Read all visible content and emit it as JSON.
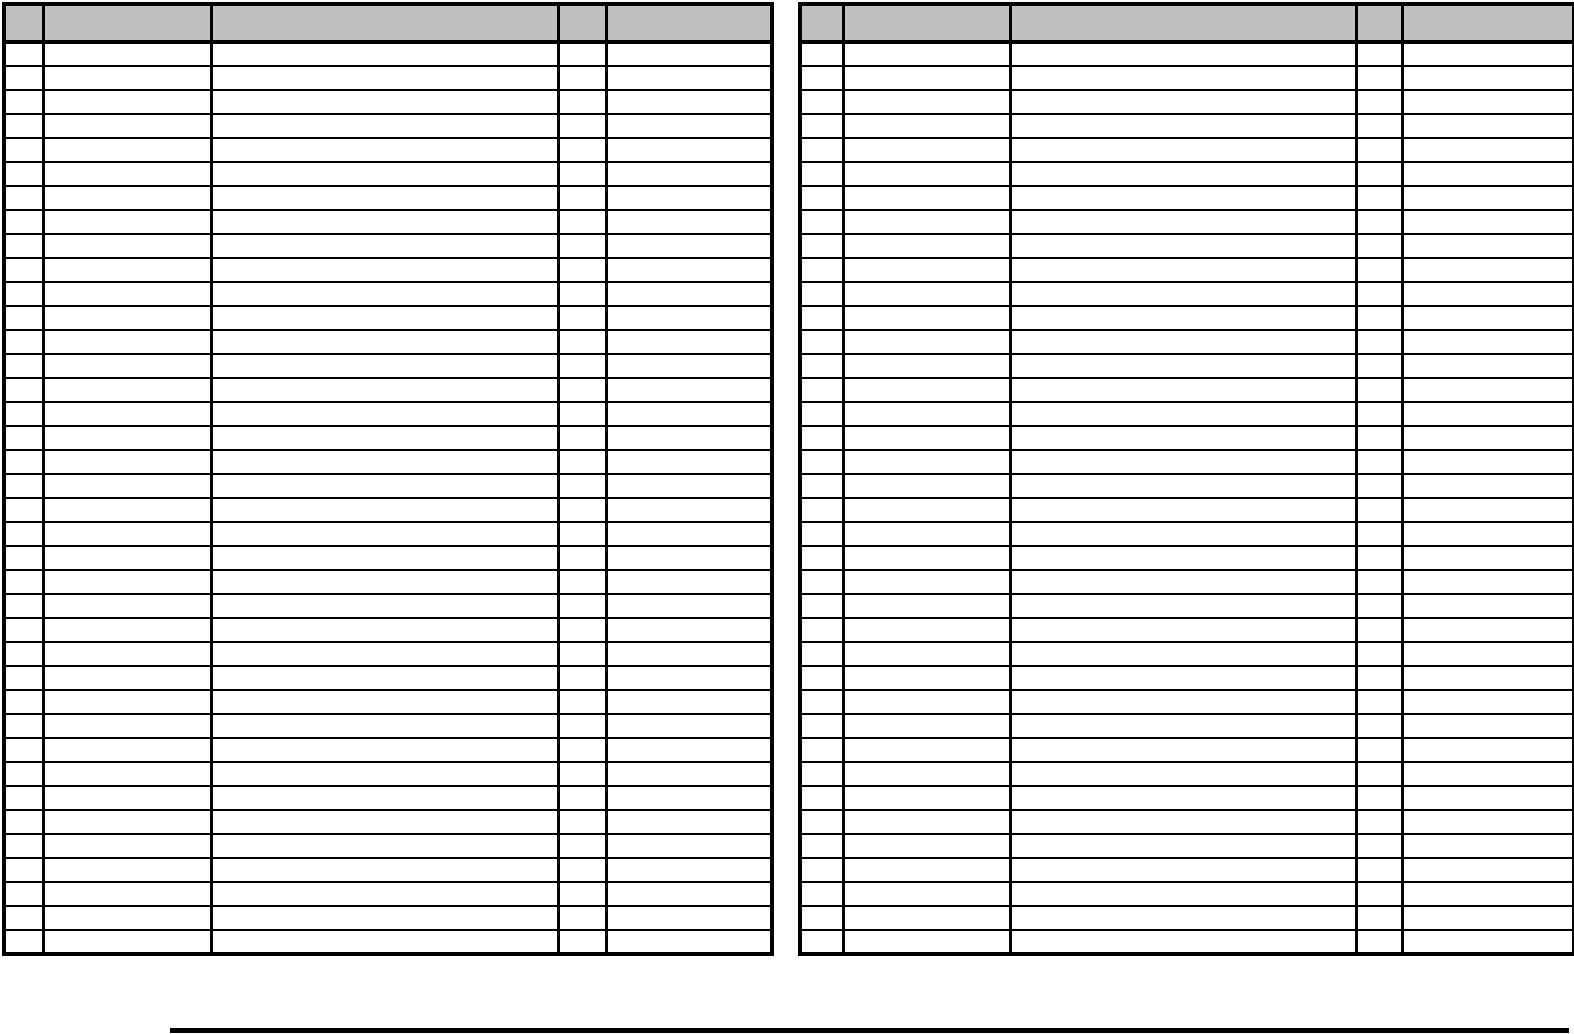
{
  "document": {
    "kind": "blank-form-page",
    "background": "#ffffff"
  },
  "theme": {
    "header_fill": "#c0c0c0",
    "border_color": "#000000",
    "footer_rule_color": "#000000"
  },
  "tables": [
    {
      "name": "left-table",
      "columns": 5,
      "data_rows": 38,
      "cell_text": "",
      "header": {
        "labels": [
          "",
          "",
          "",
          "",
          ""
        ]
      }
    },
    {
      "name": "right-table",
      "columns": 5,
      "data_rows": 38,
      "cell_text": "",
      "header": {
        "labels": [
          "",
          "",
          "",
          "",
          ""
        ]
      }
    }
  ],
  "footer": {
    "rule": true
  }
}
